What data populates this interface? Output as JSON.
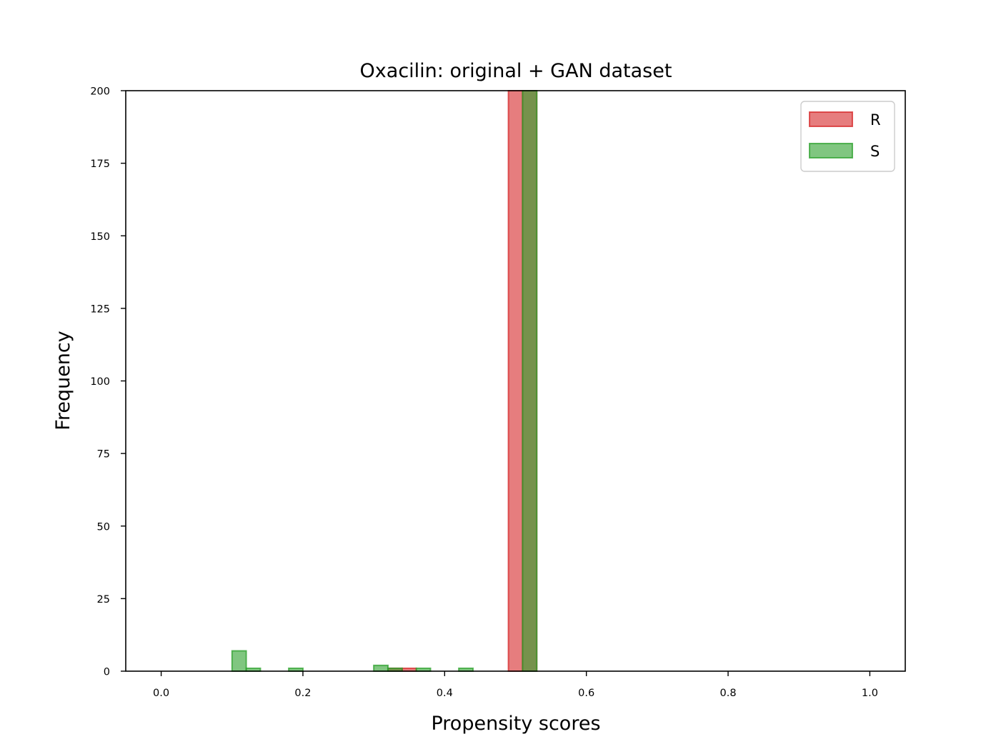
{
  "chart_data": {
    "type": "bar",
    "title": "Oxacilin: original + GAN dataset",
    "xlabel": "Propensity scores",
    "ylabel": "Frequency",
    "xlim": [
      -0.05,
      1.05
    ],
    "ylim": [
      0,
      200
    ],
    "xticks": [
      "0.0",
      "0.2",
      "0.4",
      "0.6",
      "0.8",
      "1.0"
    ],
    "yticks": [
      "0",
      "25",
      "50",
      "75",
      "100",
      "125",
      "150",
      "175",
      "200"
    ],
    "bin_width": 0.02,
    "grid": false,
    "legend_position": "top-right",
    "series": [
      {
        "name": "R",
        "color": "#d62728",
        "bins": [
          {
            "x": 0.33,
            "value": 1
          },
          {
            "x": 0.35,
            "value": 1
          },
          {
            "x": 0.5,
            "value": 200
          },
          {
            "x": 0.52,
            "value": 200
          }
        ]
      },
      {
        "name": "S",
        "color": "#2ca02c",
        "bins": [
          {
            "x": 0.11,
            "value": 7
          },
          {
            "x": 0.13,
            "value": 1
          },
          {
            "x": 0.19,
            "value": 1
          },
          {
            "x": 0.31,
            "value": 2
          },
          {
            "x": 0.33,
            "value": 1
          },
          {
            "x": 0.37,
            "value": 1
          },
          {
            "x": 0.43,
            "value": 1
          },
          {
            "x": 0.52,
            "value": 200
          }
        ]
      }
    ]
  }
}
